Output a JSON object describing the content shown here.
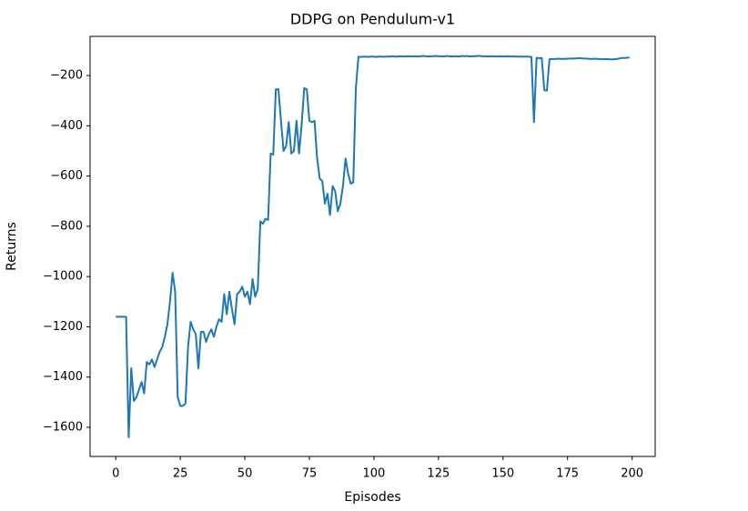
{
  "chart_data": {
    "type": "line",
    "title": "DDPG on Pendulum-v1",
    "x_label": "Episodes",
    "y_label": "Returns",
    "x": [
      0,
      1,
      2,
      3,
      4,
      5,
      6,
      7,
      8,
      9,
      10,
      11,
      12,
      13,
      14,
      15,
      16,
      17,
      18,
      19,
      20,
      21,
      22,
      23,
      24,
      25,
      26,
      27,
      28,
      29,
      30,
      31,
      32,
      33,
      34,
      35,
      36,
      37,
      38,
      39,
      40,
      41,
      42,
      43,
      44,
      45,
      46,
      47,
      48,
      49,
      50,
      51,
      52,
      53,
      54,
      55,
      56,
      57,
      58,
      59,
      60,
      61,
      62,
      63,
      64,
      65,
      66,
      67,
      68,
      69,
      70,
      71,
      72,
      73,
      74,
      75,
      76,
      77,
      78,
      79,
      80,
      81,
      82,
      83,
      84,
      85,
      86,
      87,
      88,
      89,
      90,
      91,
      92,
      93,
      94,
      95,
      96,
      97,
      98,
      99,
      100,
      101,
      102,
      103,
      104,
      105,
      106,
      107,
      108,
      109,
      110,
      111,
      112,
      113,
      114,
      115,
      116,
      117,
      118,
      119,
      120,
      121,
      122,
      123,
      124,
      125,
      126,
      127,
      128,
      129,
      130,
      131,
      132,
      133,
      134,
      135,
      136,
      137,
      138,
      139,
      140,
      141,
      142,
      143,
      144,
      145,
      146,
      147,
      148,
      149,
      150,
      151,
      152,
      153,
      154,
      155,
      156,
      157,
      158,
      159,
      160,
      161,
      162,
      163,
      164,
      165,
      166,
      167,
      168,
      169,
      170,
      171,
      172,
      173,
      174,
      175,
      176,
      177,
      178,
      179,
      180,
      181,
      182,
      183,
      184,
      185,
      186,
      187,
      188,
      189,
      190,
      191,
      192,
      193,
      194,
      195,
      196,
      197,
      198,
      199
    ],
    "series": [
      {
        "name": "Returns",
        "color": "#1f77b4",
        "values": [
          -1160,
          -1160,
          -1160,
          -1160,
          -1160,
          -1640,
          -1365,
          -1495,
          -1480,
          -1450,
          -1420,
          -1465,
          -1340,
          -1350,
          -1330,
          -1360,
          -1330,
          -1300,
          -1280,
          -1240,
          -1190,
          -1100,
          -985,
          -1060,
          -1480,
          -1515,
          -1515,
          -1505,
          -1280,
          -1180,
          -1210,
          -1230,
          -1365,
          -1220,
          -1220,
          -1260,
          -1230,
          -1210,
          -1240,
          -1200,
          -1170,
          -1180,
          -1070,
          -1150,
          -1060,
          -1130,
          -1190,
          -1070,
          -1060,
          -1040,
          -1080,
          -1060,
          -1110,
          -1010,
          -1080,
          -1050,
          -780,
          -790,
          -770,
          -775,
          -510,
          -515,
          -255,
          -255,
          -380,
          -500,
          -480,
          -385,
          -510,
          -500,
          -380,
          -510,
          -395,
          -250,
          -255,
          -380,
          -385,
          -380,
          -530,
          -610,
          -620,
          -710,
          -670,
          -755,
          -640,
          -660,
          -740,
          -710,
          -640,
          -530,
          -590,
          -630,
          -625,
          -250,
          -125,
          -126,
          -125,
          -125,
          -126,
          -124,
          -125,
          -126,
          -124,
          -125,
          -125,
          -124,
          -125,
          -123,
          -124,
          -125,
          -123,
          -124,
          -124,
          -123,
          -124,
          -123,
          -123,
          -124,
          -123,
          -122,
          -123,
          -124,
          -123,
          -123,
          -122,
          -123,
          -123,
          -124,
          -122,
          -123,
          -124,
          -123,
          -123,
          -124,
          -122,
          -123,
          -122,
          -124,
          -123,
          -123,
          -122,
          -122,
          -123,
          -123,
          -124,
          -123,
          -123,
          -124,
          -124,
          -123,
          -124,
          -124,
          -123,
          -124,
          -124,
          -124,
          -125,
          -124,
          -125,
          -124,
          -125,
          -126,
          -385,
          -130,
          -131,
          -130,
          -258,
          -260,
          -135,
          -134,
          -134,
          -133,
          -133,
          -134,
          -133,
          -133,
          -132,
          -132,
          -132,
          -131,
          -131,
          -132,
          -132,
          -133,
          -134,
          -133,
          -133,
          -134,
          -134,
          -135,
          -134,
          -135,
          -136,
          -135,
          -134,
          -132,
          -130,
          -130,
          -129,
          -128
        ]
      }
    ],
    "xlim": [
      -9.95,
      208.95
    ],
    "ylim": [
      -1716,
      -44
    ],
    "xticks": [
      0,
      25,
      50,
      75,
      100,
      125,
      150,
      175,
      200
    ],
    "yticks": [
      {
        "value": -1600,
        "label": "−1600"
      },
      {
        "value": -1400,
        "label": "−1400"
      },
      {
        "value": -1200,
        "label": "−1200"
      },
      {
        "value": -1000,
        "label": "−1000"
      },
      {
        "value": -800,
        "label": "−800"
      },
      {
        "value": -600,
        "label": "−600"
      },
      {
        "value": -400,
        "label": "−400"
      },
      {
        "value": -200,
        "label": "−200"
      }
    ]
  }
}
